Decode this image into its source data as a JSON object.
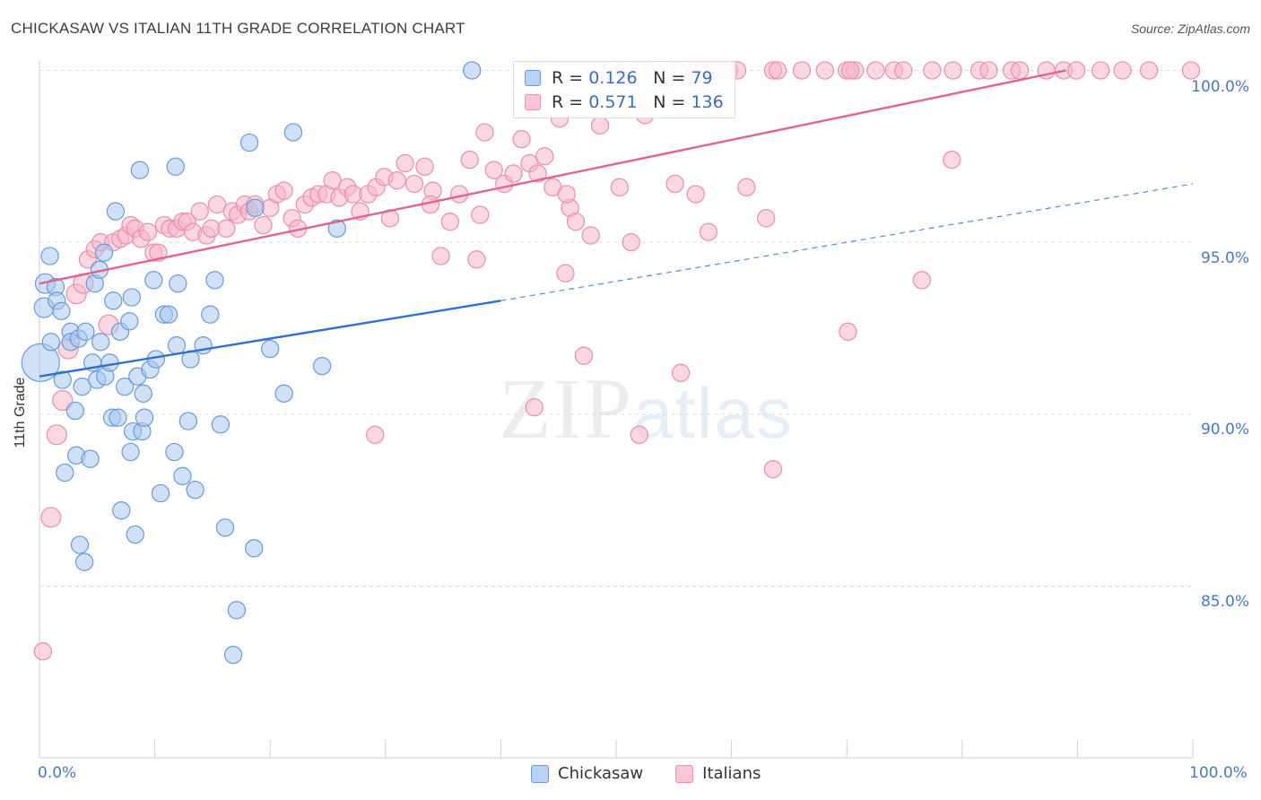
{
  "title": "CHICKASAW VS ITALIAN 11TH GRADE CORRELATION CHART",
  "source": "Source: ZipAtlas.com",
  "watermark": {
    "zip": "ZIP",
    "atlas": "atlas"
  },
  "legend": {
    "r_label": "R =",
    "n_label": "N =",
    "rows": [
      {
        "name": "Chickasaw",
        "r": "0.126",
        "n": "79"
      },
      {
        "name": "Italians",
        "r": "0.571",
        "n": "136"
      }
    ]
  },
  "colors": {
    "chickasaw_fill": "#a9c7ee",
    "chickasaw_stroke": "#6a9bd8",
    "chickasaw_line": "#2f6fcf",
    "italians_fill": "#f7b7cb",
    "italians_stroke": "#e98fac",
    "italians_line": "#e0648e",
    "grid": "#dddddd",
    "axis_text": "#4a78c2"
  },
  "chart_data": {
    "type": "scatter",
    "title": "CHICKASAW VS ITALIAN 11TH GRADE CORRELATION CHART",
    "xlabel": "",
    "ylabel": "11th Grade",
    "xlim": [
      0,
      100
    ],
    "ylim": [
      80.0,
      100.5
    ],
    "x_tick_labels": [
      "0.0%",
      "100.0%"
    ],
    "y_ticks": [
      85,
      90,
      95,
      100
    ],
    "y_tick_labels": [
      "85.0%",
      "90.0%",
      "95.0%",
      "100.0%"
    ],
    "grid": true,
    "legend_position": "bottom-center",
    "series": [
      {
        "name": "Chickasaw",
        "r": 0.126,
        "n": 79,
        "trend": {
          "x": [
            0,
            40
          ],
          "y": [
            91.1,
            93.3
          ],
          "extended_to": [
            100,
            96.7
          ]
        },
        "points": [
          [
            0.1,
            91.5,
            28
          ],
          [
            0.4,
            93.1,
            14
          ],
          [
            0.5,
            93.8,
            14
          ],
          [
            0.9,
            94.6,
            12
          ],
          [
            1.0,
            92.1,
            12
          ],
          [
            1.4,
            93.7,
            12
          ],
          [
            1.5,
            93.3,
            12
          ],
          [
            1.9,
            93.0,
            12
          ],
          [
            2.0,
            91.0,
            12
          ],
          [
            2.2,
            88.3,
            12
          ],
          [
            2.7,
            92.4,
            12
          ],
          [
            2.7,
            92.1,
            12
          ],
          [
            3.1,
            90.1,
            12
          ],
          [
            3.2,
            88.8,
            12
          ],
          [
            3.4,
            92.2,
            12
          ],
          [
            3.5,
            86.2,
            12
          ],
          [
            3.7,
            90.8,
            12
          ],
          [
            3.9,
            85.7,
            12
          ],
          [
            4.0,
            92.4,
            12
          ],
          [
            4.4,
            88.7,
            12
          ],
          [
            4.6,
            91.5,
            12
          ],
          [
            4.8,
            93.8,
            12
          ],
          [
            5.0,
            91.0,
            12
          ],
          [
            5.2,
            94.2,
            12
          ],
          [
            5.3,
            92.1,
            12
          ],
          [
            5.6,
            94.7,
            12
          ],
          [
            5.7,
            91.1,
            12
          ],
          [
            6.1,
            91.5,
            12
          ],
          [
            6.3,
            89.9,
            12
          ],
          [
            6.4,
            93.3,
            12
          ],
          [
            6.6,
            95.9,
            12
          ],
          [
            6.8,
            89.9,
            12
          ],
          [
            7.0,
            92.4,
            12
          ],
          [
            7.1,
            87.2,
            12
          ],
          [
            7.4,
            90.8,
            12
          ],
          [
            7.8,
            92.7,
            12
          ],
          [
            7.9,
            88.9,
            12
          ],
          [
            8.0,
            93.4,
            12
          ],
          [
            8.1,
            89.5,
            12
          ],
          [
            8.3,
            86.5,
            12
          ],
          [
            8.5,
            91.1,
            12
          ],
          [
            8.7,
            97.1,
            12
          ],
          [
            8.9,
            89.5,
            12
          ],
          [
            9.0,
            90.6,
            12
          ],
          [
            9.1,
            89.9,
            12
          ],
          [
            9.6,
            91.3,
            12
          ],
          [
            9.9,
            93.9,
            12
          ],
          [
            10.1,
            91.6,
            12
          ],
          [
            10.5,
            87.7,
            12
          ],
          [
            10.8,
            92.9,
            12
          ],
          [
            11.2,
            92.9,
            12
          ],
          [
            11.7,
            88.9,
            12
          ],
          [
            11.8,
            97.2,
            12
          ],
          [
            11.9,
            92.0,
            12
          ],
          [
            12.0,
            93.8,
            12
          ],
          [
            12.4,
            88.2,
            12
          ],
          [
            12.9,
            89.8,
            12
          ],
          [
            13.1,
            91.6,
            12
          ],
          [
            13.5,
            87.8,
            12
          ],
          [
            14.2,
            92.0,
            12
          ],
          [
            14.8,
            92.9,
            12
          ],
          [
            15.2,
            93.9,
            12
          ],
          [
            15.7,
            89.7,
            12
          ],
          [
            16.1,
            86.7,
            12
          ],
          [
            16.8,
            83.0,
            12
          ],
          [
            17.1,
            84.3,
            12
          ],
          [
            18.2,
            97.9,
            12
          ],
          [
            18.6,
            86.1,
            12
          ],
          [
            18.7,
            96.0,
            12
          ],
          [
            20.0,
            91.9,
            12
          ],
          [
            21.2,
            90.6,
            12
          ],
          [
            22.0,
            98.2,
            12
          ],
          [
            24.5,
            91.4,
            12
          ],
          [
            25.8,
            95.4,
            12
          ],
          [
            37.5,
            100.0,
            12
          ]
        ]
      },
      {
        "name": "Italians",
        "r": 0.571,
        "n": 136,
        "trend": {
          "x": [
            0,
            89
          ],
          "y": [
            93.8,
            100.0
          ]
        },
        "points": [
          [
            0.3,
            83.1,
            12
          ],
          [
            1.0,
            87.0,
            14
          ],
          [
            1.5,
            89.4,
            14
          ],
          [
            2.0,
            90.4,
            14
          ],
          [
            2.5,
            91.9,
            14
          ],
          [
            3.2,
            93.5,
            14
          ],
          [
            3.8,
            93.8,
            14
          ],
          [
            4.2,
            94.5,
            12
          ],
          [
            4.8,
            94.8,
            12
          ],
          [
            5.3,
            95.0,
            12
          ],
          [
            6.0,
            92.6,
            14
          ],
          [
            6.4,
            95.0,
            12
          ],
          [
            7.0,
            95.1,
            12
          ],
          [
            7.5,
            95.2,
            12
          ],
          [
            7.9,
            95.5,
            12
          ],
          [
            8.3,
            95.4,
            12
          ],
          [
            8.8,
            95.1,
            12
          ],
          [
            9.4,
            95.3,
            12
          ],
          [
            9.9,
            94.7,
            12
          ],
          [
            10.3,
            94.7,
            12
          ],
          [
            10.8,
            95.5,
            12
          ],
          [
            11.3,
            95.4,
            12
          ],
          [
            11.9,
            95.4,
            12
          ],
          [
            12.4,
            95.6,
            12
          ],
          [
            12.8,
            95.6,
            12
          ],
          [
            13.3,
            95.3,
            12
          ],
          [
            13.9,
            95.9,
            12
          ],
          [
            14.5,
            95.2,
            12
          ],
          [
            14.9,
            95.4,
            12
          ],
          [
            15.4,
            96.1,
            12
          ],
          [
            16.2,
            95.4,
            12
          ],
          [
            16.7,
            95.9,
            12
          ],
          [
            17.2,
            95.8,
            12
          ],
          [
            17.8,
            96.1,
            12
          ],
          [
            18.2,
            95.9,
            12
          ],
          [
            18.7,
            96.1,
            12
          ],
          [
            19.4,
            95.5,
            12
          ],
          [
            20.0,
            96.0,
            12
          ],
          [
            20.6,
            96.4,
            12
          ],
          [
            21.2,
            96.5,
            12
          ],
          [
            21.9,
            95.7,
            12
          ],
          [
            22.4,
            95.4,
            12
          ],
          [
            23.0,
            96.1,
            12
          ],
          [
            23.6,
            96.3,
            12
          ],
          [
            24.2,
            96.4,
            12
          ],
          [
            24.9,
            96.4,
            12
          ],
          [
            25.4,
            96.8,
            12
          ],
          [
            26.0,
            96.3,
            12
          ],
          [
            26.7,
            96.6,
            12
          ],
          [
            27.2,
            96.4,
            12
          ],
          [
            27.8,
            95.9,
            12
          ],
          [
            28.5,
            96.4,
            12
          ],
          [
            29.2,
            96.6,
            12
          ],
          [
            29.9,
            96.9,
            12
          ],
          [
            30.4,
            95.7,
            12
          ],
          [
            31.0,
            96.8,
            12
          ],
          [
            31.7,
            97.3,
            12
          ],
          [
            32.5,
            96.7,
            12
          ],
          [
            33.4,
            97.2,
            12
          ],
          [
            34.1,
            96.5,
            12
          ],
          [
            34.8,
            94.6,
            12
          ],
          [
            35.6,
            95.6,
            12
          ],
          [
            36.4,
            96.4,
            12
          ],
          [
            37.3,
            97.4,
            12
          ],
          [
            37.9,
            94.5,
            12
          ],
          [
            38.6,
            98.2,
            12
          ],
          [
            39.4,
            97.1,
            12
          ],
          [
            40.3,
            96.7,
            12
          ],
          [
            41.1,
            97.0,
            12
          ],
          [
            41.8,
            98.0,
            12
          ],
          [
            42.5,
            97.3,
            12
          ],
          [
            43.2,
            97.0,
            12
          ],
          [
            43.8,
            97.5,
            12
          ],
          [
            44.5,
            96.6,
            12
          ],
          [
            45.1,
            98.6,
            12
          ],
          [
            45.6,
            94.1,
            12
          ],
          [
            46.0,
            96.0,
            12
          ],
          [
            46.5,
            95.6,
            12
          ],
          [
            47.2,
            91.7,
            12
          ],
          [
            47.8,
            95.2,
            12
          ],
          [
            48.6,
            98.4,
            12
          ],
          [
            49.5,
            100.0,
            12
          ],
          [
            50.3,
            96.6,
            12
          ],
          [
            50.8,
            100.0,
            12
          ],
          [
            51.3,
            95.0,
            12
          ],
          [
            52.0,
            89.4,
            12
          ],
          [
            52.5,
            98.7,
            12
          ],
          [
            53.2,
            100.0,
            12
          ],
          [
            53.8,
            99.6,
            12
          ],
          [
            54.4,
            100.0,
            12
          ],
          [
            55.1,
            96.7,
            12
          ],
          [
            55.6,
            99.0,
            12
          ],
          [
            56.3,
            100.0,
            12
          ],
          [
            57.0,
            100.0,
            12
          ],
          [
            57.6,
            100.0,
            12
          ],
          [
            58.4,
            100.0,
            12
          ],
          [
            59.1,
            100.0,
            12
          ],
          [
            59.8,
            100.0,
            12
          ],
          [
            60.5,
            100.0,
            12
          ],
          [
            63.6,
            100.0,
            12
          ],
          [
            64.0,
            100.0,
            12
          ],
          [
            66.1,
            100.0,
            12
          ],
          [
            68.1,
            100.0,
            12
          ],
          [
            70.0,
            100.0,
            12
          ],
          [
            70.7,
            100.0,
            12
          ],
          [
            70.3,
            100.0,
            12
          ],
          [
            72.5,
            100.0,
            12
          ],
          [
            74.1,
            100.0,
            12
          ],
          [
            74.9,
            100.0,
            12
          ],
          [
            77.4,
            100.0,
            12
          ],
          [
            79.2,
            100.0,
            12
          ],
          [
            81.5,
            100.0,
            12
          ],
          [
            82.3,
            100.0,
            12
          ],
          [
            84.3,
            100.0,
            12
          ],
          [
            85.0,
            100.0,
            12
          ],
          [
            87.3,
            100.0,
            12
          ],
          [
            88.8,
            100.0,
            12
          ],
          [
            89.9,
            100.0,
            12
          ],
          [
            92.0,
            100.0,
            12
          ],
          [
            93.9,
            100.0,
            12
          ],
          [
            96.2,
            100.0,
            12
          ],
          [
            100.0,
            100.0,
            12
          ],
          [
            29.1,
            89.4,
            12
          ],
          [
            42.9,
            90.2,
            12
          ],
          [
            55.6,
            91.2,
            12
          ],
          [
            63.6,
            88.4,
            12
          ],
          [
            70.1,
            92.4,
            12
          ],
          [
            76.5,
            93.9,
            12
          ],
          [
            79.1,
            97.4,
            12
          ],
          [
            58.0,
            95.3,
            12
          ],
          [
            61.3,
            96.6,
            12
          ],
          [
            63.0,
            95.7,
            12
          ],
          [
            56.9,
            96.4,
            12
          ],
          [
            45.7,
            96.4,
            12
          ],
          [
            38.2,
            95.8,
            12
          ],
          [
            33.9,
            96.1,
            12
          ]
        ]
      }
    ]
  }
}
